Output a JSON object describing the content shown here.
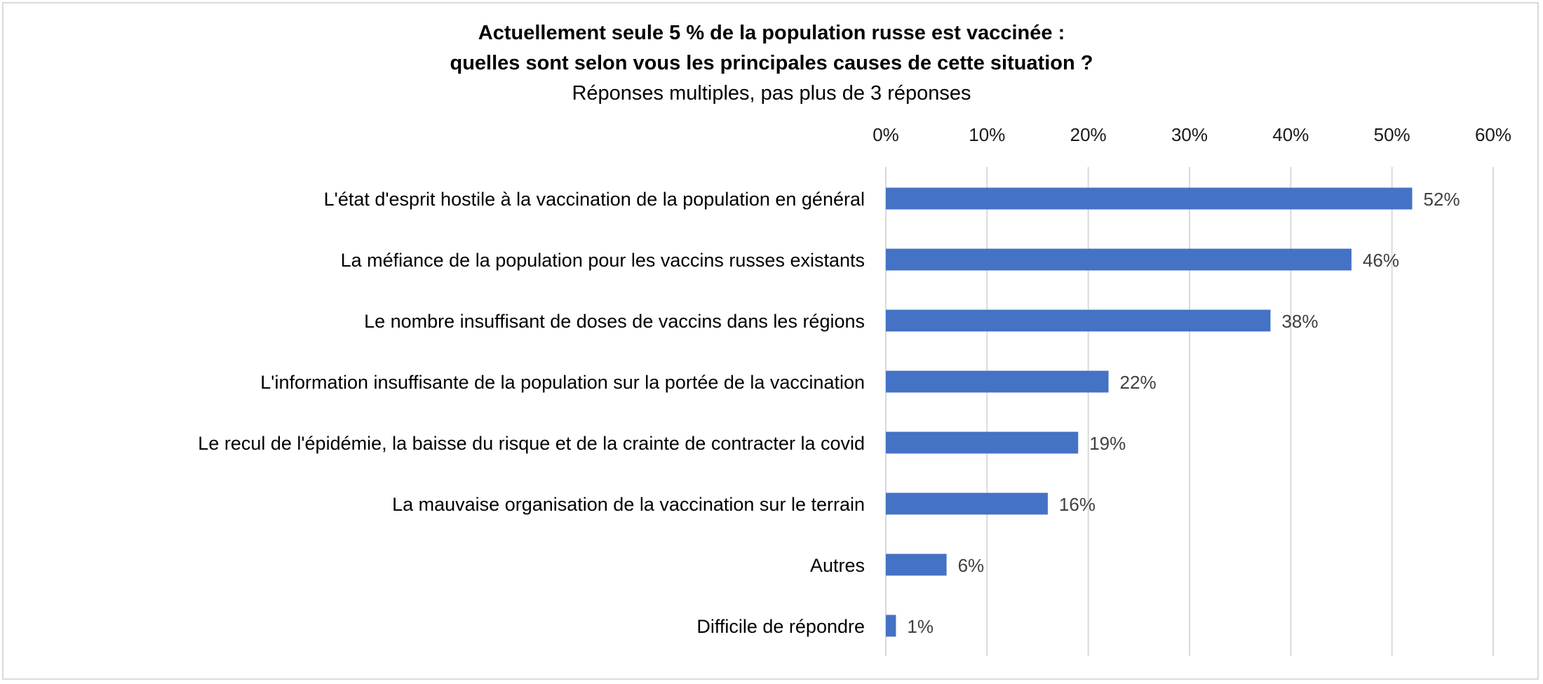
{
  "chart_data": {
    "type": "bar",
    "orientation": "horizontal",
    "title": "Actuellement seule 5 % de la population russe est vaccinée : quelles sont selon vous les principales causes de cette situation ?",
    "title_lines": [
      "Actuellement seule 5 % de la population russe est vaccinée :",
      "quelles sont selon vous les principales causes de cette situation ?"
    ],
    "subtitle": "Réponses multiples, pas plus de 3 réponses",
    "categories": [
      "L'état d'esprit hostile à la vaccination de la population en général",
      "La méfiance de la population pour les vaccins russes existants",
      "Le nombre insuffisant de doses de vaccins dans les régions",
      "L'information insuffisante de la population sur la portée de la vaccination",
      "Le recul de l'épidémie, la baisse du risque et de la crainte de contracter la covid",
      "La mauvaise organisation de la vaccination sur le terrain",
      "Autres",
      "Difficile de répondre"
    ],
    "values": [
      52,
      46,
      38,
      22,
      19,
      16,
      6,
      1
    ],
    "value_labels": [
      "52%",
      "46%",
      "38%",
      "22%",
      "19%",
      "16%",
      "6%",
      "1%"
    ],
    "xlim": [
      0,
      60
    ],
    "ticks": [
      0,
      10,
      20,
      30,
      40,
      50,
      60
    ],
    "tick_labels": [
      "0%",
      "10%",
      "20%",
      "30%",
      "40%",
      "50%",
      "60%"
    ],
    "axis_position": "top",
    "grid": true,
    "bar_color": "#4472c4",
    "grid_color": "#d9d9d9"
  }
}
